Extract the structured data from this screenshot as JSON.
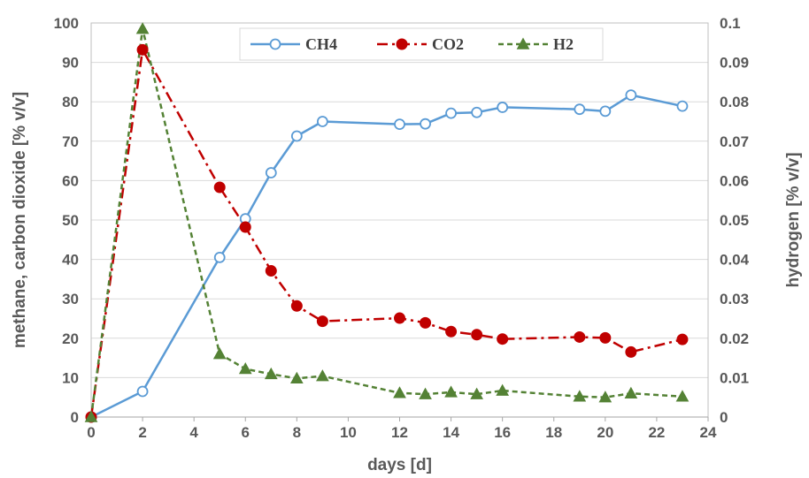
{
  "chart_data": {
    "type": "line",
    "xlabel": "days [d]",
    "ylabel": "methane, carbon dioxide [% v/v]",
    "y2label": "hydrogen [% v/v]",
    "xlim": [
      0,
      24
    ],
    "xticks": [
      0,
      2,
      4,
      6,
      8,
      10,
      12,
      14,
      16,
      18,
      20,
      22,
      24
    ],
    "ylim": [
      0,
      100
    ],
    "yticks": [
      0,
      10,
      20,
      30,
      40,
      50,
      60,
      70,
      80,
      90,
      100
    ],
    "y2lim": [
      0,
      0.1
    ],
    "y2ticks": [
      0,
      0.01,
      0.02,
      0.03,
      0.04,
      0.05,
      0.06,
      0.07,
      0.08,
      0.09,
      0.1
    ],
    "y2tick_labels": [
      "0",
      "0.01",
      "0.02",
      "0.03",
      "0.04",
      "0.05",
      "0.06",
      "0.07",
      "0.08",
      "0.09",
      "0.1"
    ],
    "grid": true,
    "legend_position": "top-center",
    "series": [
      {
        "name": "CH4",
        "axis": "left",
        "color": "#5b9bd5",
        "marker": "circle-open",
        "line_style": "solid",
        "x": [
          0,
          2,
          5,
          6,
          7,
          8,
          9,
          12,
          13,
          14,
          15,
          16,
          19,
          20,
          21,
          23
        ],
        "y": [
          0,
          6.5,
          40.5,
          50.3,
          62,
          71.3,
          75,
          74.3,
          74.4,
          77.1,
          77.3,
          78.6,
          78.1,
          77.6,
          81.7,
          78.9
        ]
      },
      {
        "name": "CO2",
        "axis": "left",
        "color": "#c00000",
        "marker": "circle-filled",
        "line_style": "dash-dot",
        "x": [
          0,
          2,
          5,
          6,
          7,
          8,
          9,
          12,
          13,
          14,
          15,
          16,
          19,
          20,
          21,
          23
        ],
        "y": [
          0,
          93.2,
          58.3,
          48.2,
          37.1,
          28.2,
          24.3,
          25.1,
          23.9,
          21.7,
          20.9,
          19.8,
          20.3,
          20.1,
          16.5,
          19.7
        ]
      },
      {
        "name": "H2",
        "axis": "right",
        "color": "#548235",
        "marker": "triangle",
        "line_style": "dashed",
        "x": [
          0,
          2,
          5,
          6,
          7,
          8,
          9,
          12,
          13,
          14,
          15,
          16,
          19,
          20,
          21,
          23
        ],
        "y": [
          0,
          0.0985,
          0.016,
          0.0122,
          0.0109,
          0.0098,
          0.0104,
          0.0061,
          0.0058,
          0.0063,
          0.0058,
          0.0067,
          0.0052,
          0.005,
          0.006,
          0.0052
        ]
      }
    ]
  }
}
